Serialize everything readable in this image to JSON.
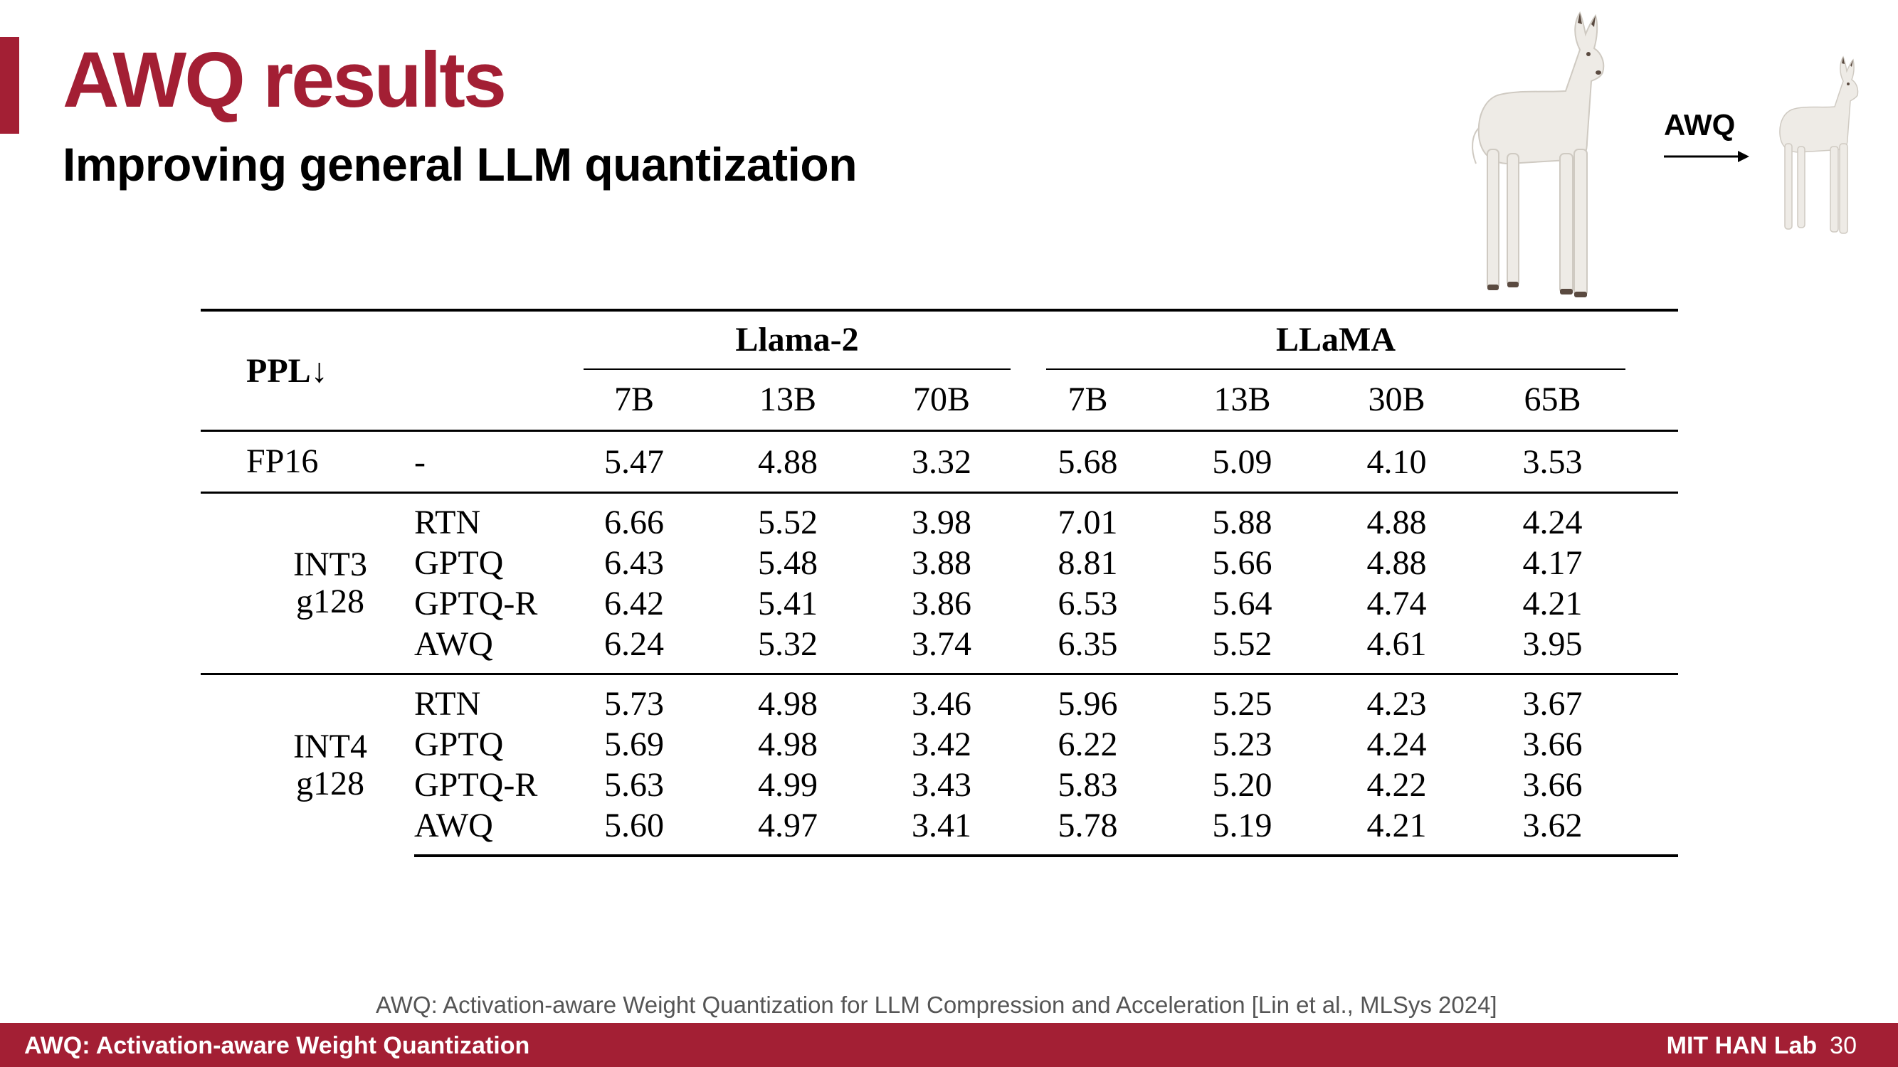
{
  "slide": {
    "title": "AWQ results",
    "subtitle": "Improving general LLM quantization",
    "arrow_label": "AWQ"
  },
  "table": {
    "corner_label": "PPL↓",
    "groups": [
      {
        "name": "Llama-2",
        "sizes": [
          "7B",
          "13B",
          "70B"
        ]
      },
      {
        "name": "LLaMA",
        "sizes": [
          "7B",
          "13B",
          "30B",
          "65B"
        ]
      }
    ],
    "fp16": {
      "precision": "FP16",
      "method": "-",
      "values": [
        "5.47",
        "4.88",
        "3.32",
        "5.68",
        "5.09",
        "4.10",
        "3.53"
      ]
    },
    "int3": {
      "precision_line1": "INT3",
      "precision_line2": "g128",
      "rows": [
        {
          "method": "RTN",
          "values": [
            "6.66",
            "5.52",
            "3.98",
            "7.01",
            "5.88",
            "4.88",
            "4.24"
          ]
        },
        {
          "method": "GPTQ",
          "values": [
            "6.43",
            "5.48",
            "3.88",
            "8.81",
            "5.66",
            "4.88",
            "4.17"
          ]
        },
        {
          "method": "GPTQ-R",
          "values": [
            "6.42",
            "5.41",
            "3.86",
            "6.53",
            "5.64",
            "4.74",
            "4.21"
          ]
        },
        {
          "method": "AWQ",
          "values": [
            "6.24",
            "5.32",
            "3.74",
            "6.35",
            "5.52",
            "4.61",
            "3.95"
          ]
        }
      ]
    },
    "int4": {
      "precision_line1": "INT4",
      "precision_line2": "g128",
      "rows": [
        {
          "method": "RTN",
          "values": [
            "5.73",
            "4.98",
            "3.46",
            "5.96",
            "5.25",
            "4.23",
            "3.67"
          ]
        },
        {
          "method": "GPTQ",
          "values": [
            "5.69",
            "4.98",
            "3.42",
            "6.22",
            "5.23",
            "4.24",
            "3.66"
          ]
        },
        {
          "method": "GPTQ-R",
          "values": [
            "5.63",
            "4.99",
            "3.43",
            "5.83",
            "5.20",
            "4.22",
            "3.66"
          ]
        },
        {
          "method": "AWQ",
          "values": [
            "5.60",
            "4.97",
            "3.41",
            "5.78",
            "5.19",
            "4.21",
            "3.62"
          ]
        }
      ]
    }
  },
  "footnote": "AWQ: Activation-aware Weight Quantization for LLM Compression and Acceleration  [Lin et al., MLSys 2024]",
  "footer": {
    "left": "AWQ: Activation-aware Weight Quantization",
    "lab": "MIT HAN Lab",
    "page_number": "30"
  },
  "colors": {
    "accent": "#a31f34"
  },
  "icons": [
    "llama-large-image",
    "llama-small-image",
    "arrow-right-icon"
  ]
}
